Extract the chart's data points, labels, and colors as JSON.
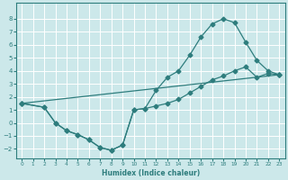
{
  "xlabel": "Humidex (Indice chaleur)",
  "bg_color": "#cce8ea",
  "grid_color": "#ffffff",
  "line_color": "#2e7d7d",
  "xlim": [
    -0.5,
    23.5
  ],
  "ylim": [
    -2.7,
    9.2
  ],
  "xticks": [
    0,
    1,
    2,
    3,
    4,
    5,
    6,
    7,
    8,
    9,
    10,
    11,
    12,
    13,
    14,
    15,
    16,
    17,
    18,
    19,
    20,
    21,
    22,
    23
  ],
  "yticks": [
    -2,
    -1,
    0,
    1,
    2,
    3,
    4,
    5,
    6,
    7,
    8
  ],
  "curve1_x": [
    0,
    2,
    3,
    4,
    5,
    6,
    7,
    8,
    9,
    10,
    11,
    12,
    13,
    14,
    15,
    16,
    17,
    18,
    19,
    20,
    21,
    22,
    23
  ],
  "curve1_y": [
    1.5,
    1.2,
    0.0,
    -0.6,
    -0.9,
    -1.3,
    -1.9,
    -2.1,
    -1.7,
    1.0,
    1.1,
    2.5,
    3.5,
    4.0,
    5.2,
    6.6,
    7.6,
    8.0,
    7.7,
    6.2,
    4.8,
    4.0,
    3.7
  ],
  "curve2_x": [
    0,
    2,
    3,
    4,
    5,
    6,
    7,
    8,
    9,
    10,
    11,
    12,
    13,
    14,
    15,
    16,
    17,
    18,
    19,
    20,
    21,
    22,
    23
  ],
  "curve2_y": [
    1.5,
    1.2,
    0.0,
    -0.6,
    -0.9,
    -1.3,
    -1.9,
    -2.1,
    -1.7,
    1.0,
    1.1,
    1.3,
    1.5,
    1.8,
    2.3,
    2.8,
    3.3,
    3.6,
    4.0,
    4.3,
    3.5,
    3.8,
    3.7
  ],
  "curve3_x": [
    0,
    23
  ],
  "curve3_y": [
    1.5,
    3.7
  ],
  "marker": "D",
  "markersize": 2.5
}
